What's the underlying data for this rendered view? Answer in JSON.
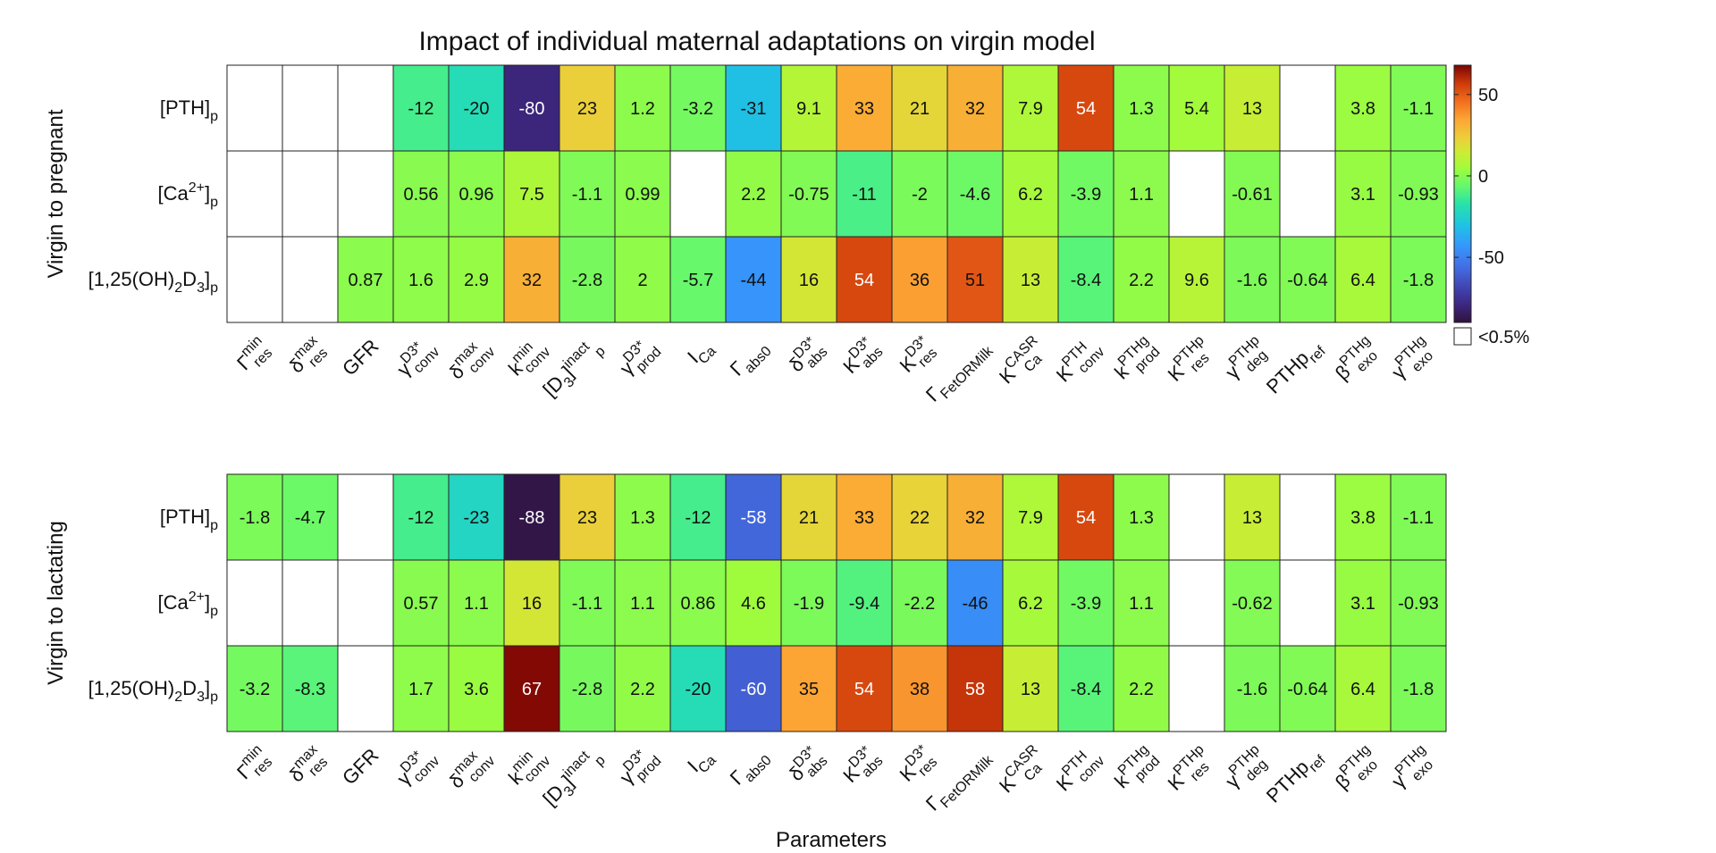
{
  "chart_data": {
    "type": "heatmap",
    "title": "Impact of individual maternal adaptations on virgin model",
    "xlabel": "Parameters",
    "row_labels": [
      {
        "base": "[PTH]",
        "sup": "",
        "sub": "p"
      },
      {
        "base": "[Ca",
        "sup": "2+",
        "after": "]",
        "sub": "p"
      },
      {
        "base": "[1,25(OH)",
        "sub1": "2",
        "mid": "D",
        "sub2": "3",
        "after": "]",
        "sub": "p"
      }
    ],
    "columns": [
      {
        "base": "Γ",
        "sup": "min",
        "sub": "res"
      },
      {
        "base": "δ",
        "sup": "max",
        "sub": "res"
      },
      {
        "base": "GFR",
        "sup": "",
        "sub": ""
      },
      {
        "base": "γ",
        "sup": "D3*",
        "sub": "conv"
      },
      {
        "base": "δ",
        "sup": "max",
        "sub": "conv"
      },
      {
        "base": "k",
        "sup": "min",
        "sub": "conv"
      },
      {
        "base": "[D",
        "sub": "3",
        "after": "]",
        "sup": "inact",
        "sub2": "p"
      },
      {
        "base": "γ",
        "sup": "D3*",
        "sub": "prod"
      },
      {
        "base": "I",
        "sup": "",
        "sub": "Ca"
      },
      {
        "base": "Γ",
        "sup": "",
        "sub": "abs0"
      },
      {
        "base": "δ",
        "sup": "D3*",
        "sub": "abs"
      },
      {
        "base": "K",
        "sup": "D3*",
        "sub": "abs"
      },
      {
        "base": "K",
        "sup": "D3*",
        "sub": "res"
      },
      {
        "base": "Γ",
        "sup": "",
        "sub": "FetORMilk"
      },
      {
        "base": "K",
        "sup": "CASR",
        "sub": "Ca"
      },
      {
        "base": "K",
        "sup": "PTH",
        "sub": "conv"
      },
      {
        "base": "k",
        "sup": "PTHg",
        "sub": "prod"
      },
      {
        "base": "K",
        "sup": "PTHp",
        "sub": "res"
      },
      {
        "base": "γ",
        "sup": "PTHp",
        "sub": "deg"
      },
      {
        "base": "PTHp",
        "sup": "",
        "sub": "ref"
      },
      {
        "base": "β",
        "sup": "PTHg",
        "sub": "exo"
      },
      {
        "base": "γ",
        "sup": "PTHg",
        "sub": "exo"
      }
    ],
    "panels": [
      {
        "name": "Virgin to pregnant",
        "values": [
          [
            null,
            null,
            null,
            -12,
            -20,
            -80,
            23,
            1.2,
            -3.2,
            -31,
            9.1,
            33,
            21,
            32,
            7.9,
            54,
            1.3,
            5.4,
            13,
            null,
            3.8,
            -1.1
          ],
          [
            null,
            null,
            null,
            0.56,
            0.96,
            7.5,
            -1.1,
            0.99,
            null,
            2.2,
            -0.75,
            -11,
            -2,
            -4.6,
            6.2,
            -3.9,
            1.1,
            null,
            -0.61,
            null,
            3.1,
            -0.93
          ],
          [
            null,
            null,
            0.87,
            1.6,
            2.9,
            32,
            -2.8,
            2,
            -5.7,
            -44,
            16,
            54,
            36,
            51,
            13,
            -8.4,
            2.2,
            9.6,
            -1.6,
            -0.64,
            6.4,
            -1.8
          ]
        ]
      },
      {
        "name": "Virgin to lactating",
        "values": [
          [
            -1.8,
            -4.7,
            null,
            -12,
            -23,
            -88,
            23,
            1.3,
            -12,
            -58,
            21,
            33,
            22,
            32,
            7.9,
            54,
            1.3,
            null,
            13,
            null,
            3.8,
            -1.1
          ],
          [
            null,
            null,
            null,
            0.57,
            1.1,
            16,
            -1.1,
            1.1,
            0.86,
            4.6,
            -1.9,
            -9.4,
            -2.2,
            -46,
            6.2,
            -3.9,
            1.1,
            null,
            -0.62,
            null,
            3.1,
            -0.93
          ],
          [
            -3.2,
            -8.3,
            null,
            1.7,
            3.6,
            67,
            -2.8,
            2.2,
            -20,
            -60,
            35,
            54,
            38,
            58,
            13,
            -8.4,
            2.2,
            null,
            -1.6,
            -0.64,
            6.4,
            -1.8
          ]
        ]
      }
    ],
    "colorbar": {
      "min": -90,
      "max": 68,
      "ticks": [
        50,
        0,
        -50
      ],
      "blank_legend": "<0.5%"
    }
  }
}
